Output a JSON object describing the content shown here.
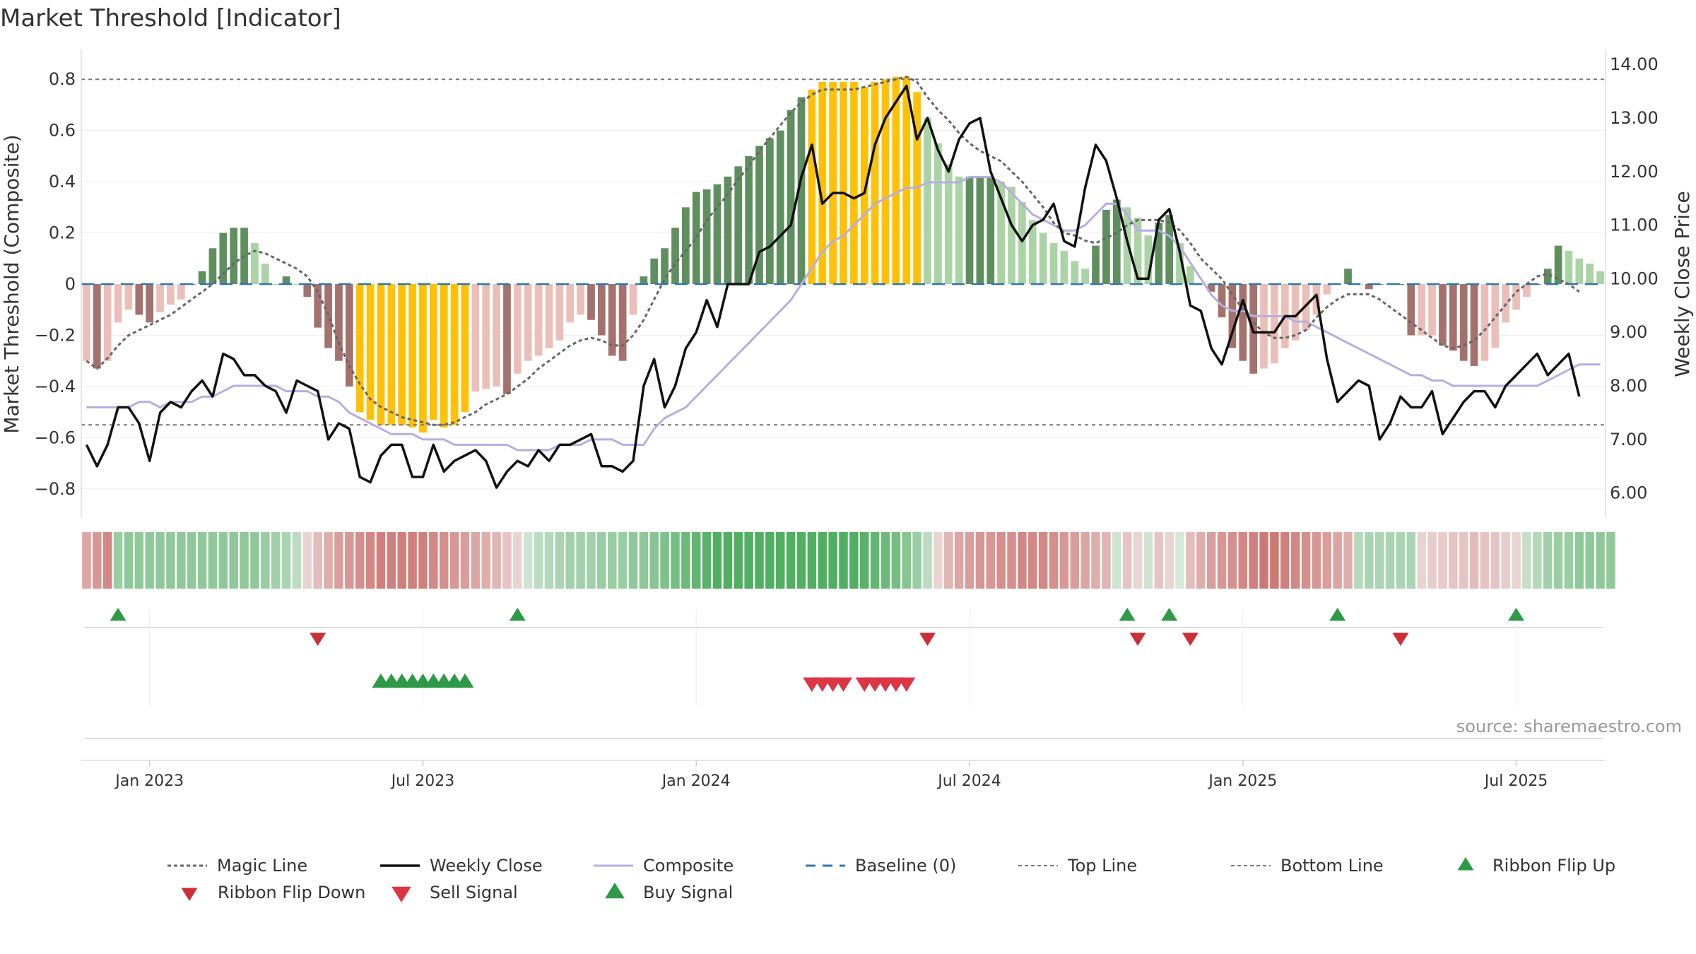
{
  "title": "Market Threshold [Indicator]",
  "source": "source: sharemaestro.com",
  "colors": {
    "bar_pos_strong": "#5f8f5f",
    "bar_pos_weak": "#aad4a5",
    "bar_neg_strong": "#a4716c",
    "bar_neg_weak": "#ebbfb9",
    "bar_extreme": "#ffc107",
    "weekly_close": "#111111",
    "composite": "#b7aee0",
    "magic_line": "#666666",
    "baseline": "#2f77a8",
    "threshold_line": "#777777",
    "up_marker": "#2e9a48",
    "down_marker": "#cc2f36",
    "sell_marker": "#dc3545",
    "buy_marker": "#2e9a48",
    "ribbon_green": "#3fa751",
    "ribbon_red": "#c55a55"
  },
  "chart_data": {
    "type": "bar",
    "y_left_label": "Market Threshold (Composite)",
    "y_right_label": "Weekly Close Price",
    "y_left_range": [
      -0.9,
      0.9
    ],
    "y_right_range": [
      5.6,
      14.2
    ],
    "y_left_ticks": [
      "0.8",
      "0.6",
      "0.4",
      "0.2",
      "0",
      "−0.2",
      "−0.4",
      "−0.6",
      "−0.8"
    ],
    "y_left_tick_values": [
      0.8,
      0.6,
      0.4,
      0.2,
      0,
      -0.2,
      -0.4,
      -0.6,
      -0.8
    ],
    "y_right_ticks": [
      "14.00",
      "13.00",
      "12.00",
      "11.00",
      "10.00",
      "9.00",
      "8.00",
      "7.00",
      "6.00"
    ],
    "y_right_tick_values": [
      14,
      13,
      12,
      11,
      10,
      9,
      8,
      7,
      6
    ],
    "x_ticks": [
      "Jan 2023",
      "Jul 2023",
      "Jan 2024",
      "Jul 2024",
      "Jan 2025",
      "Jul 2025"
    ],
    "x_tick_weeks": [
      6,
      32,
      58,
      84,
      110,
      136
    ],
    "top_line": 0.8,
    "bottom_line": -0.55,
    "baseline": 0,
    "composite_bars": [
      -0.3,
      -0.33,
      -0.3,
      -0.15,
      -0.1,
      -0.12,
      -0.15,
      -0.11,
      -0.08,
      -0.06,
      0,
      0.05,
      0.14,
      0.2,
      0.22,
      0.22,
      0.16,
      0.08,
      0,
      0.03,
      0,
      -0.05,
      -0.17,
      -0.25,
      -0.3,
      -0.4,
      -0.5,
      -0.53,
      -0.55,
      -0.55,
      -0.55,
      -0.56,
      -0.58,
      -0.53,
      -0.56,
      -0.55,
      -0.5,
      -0.42,
      -0.41,
      -0.4,
      -0.43,
      -0.35,
      -0.3,
      -0.28,
      -0.25,
      -0.22,
      -0.15,
      -0.12,
      -0.14,
      -0.2,
      -0.28,
      -0.3,
      -0.12,
      0.03,
      0.1,
      0.14,
      0.22,
      0.3,
      0.36,
      0.37,
      0.39,
      0.42,
      0.46,
      0.5,
      0.54,
      0.57,
      0.6,
      0.68,
      0.73,
      0.76,
      0.79,
      0.79,
      0.79,
      0.79,
      0.77,
      0.79,
      0.8,
      0.81,
      0.81,
      0.75,
      0.65,
      0.55,
      0.47,
      0.42,
      0.42,
      0.42,
      0.42,
      0.4,
      0.38,
      0.32,
      0.25,
      0.2,
      0.16,
      0.13,
      0.09,
      0.06,
      0.15,
      0.29,
      0.33,
      0.3,
      0.26,
      0.19,
      0.24,
      0.27,
      0.16,
      0.07,
      0,
      -0.03,
      -0.13,
      -0.25,
      -0.3,
      -0.35,
      -0.33,
      -0.31,
      -0.25,
      -0.22,
      -0.18,
      -0.12,
      -0.04,
      0,
      0.06,
      0,
      -0.02,
      0,
      0,
      0,
      -0.2,
      -0.2,
      -0.2,
      -0.24,
      -0.26,
      -0.3,
      -0.32,
      -0.3,
      -0.25,
      -0.15,
      -0.1,
      -0.05,
      0,
      0.06,
      0.15,
      0.13,
      0.1,
      0.08,
      0.05
    ],
    "magic_line": [
      -0.3,
      -0.33,
      -0.29,
      -0.24,
      -0.2,
      -0.18,
      -0.16,
      -0.14,
      -0.12,
      -0.09,
      -0.06,
      -0.03,
      0,
      0.04,
      0.08,
      0.11,
      0.13,
      0.12,
      0.1,
      0.08,
      0.06,
      0.03,
      -0.03,
      -0.12,
      -0.23,
      -0.32,
      -0.39,
      -0.45,
      -0.48,
      -0.5,
      -0.52,
      -0.53,
      -0.54,
      -0.55,
      -0.55,
      -0.54,
      -0.52,
      -0.5,
      -0.47,
      -0.45,
      -0.43,
      -0.4,
      -0.37,
      -0.33,
      -0.3,
      -0.27,
      -0.24,
      -0.22,
      -0.21,
      -0.22,
      -0.24,
      -0.24,
      -0.2,
      -0.14,
      -0.06,
      0.02,
      0.08,
      0.13,
      0.18,
      0.25,
      0.3,
      0.35,
      0.41,
      0.46,
      0.52,
      0.57,
      0.62,
      0.67,
      0.71,
      0.74,
      0.76,
      0.76,
      0.76,
      0.76,
      0.77,
      0.78,
      0.79,
      0.8,
      0.81,
      0.79,
      0.73,
      0.68,
      0.64,
      0.59,
      0.55,
      0.52,
      0.5,
      0.48,
      0.44,
      0.4,
      0.35,
      0.3,
      0.24,
      0.2,
      0.19,
      0.17,
      0.16,
      0.18,
      0.2,
      0.23,
      0.25,
      0.25,
      0.25,
      0.24,
      0.21,
      0.16,
      0.1,
      0.06,
      0.02,
      -0.04,
      -0.1,
      -0.15,
      -0.19,
      -0.21,
      -0.21,
      -0.2,
      -0.18,
      -0.13,
      -0.09,
      -0.06,
      -0.04,
      -0.04,
      -0.04,
      -0.06,
      -0.09,
      -0.12,
      -0.15,
      -0.18,
      -0.21,
      -0.24,
      -0.25,
      -0.24,
      -0.22,
      -0.18,
      -0.13,
      -0.08,
      -0.03,
      0,
      0.03,
      0.04,
      0.02,
      0,
      -0.03
    ],
    "weekly_close": [
      6.9,
      6.5,
      6.9,
      7.6,
      7.6,
      7.3,
      6.6,
      7.5,
      7.7,
      7.6,
      7.9,
      8.1,
      7.8,
      8.6,
      8.5,
      8.2,
      8.2,
      8.0,
      7.9,
      7.5,
      8.1,
      8.0,
      7.9,
      7.0,
      7.3,
      7.2,
      6.3,
      6.2,
      6.7,
      6.9,
      6.9,
      6.3,
      6.3,
      6.9,
      6.4,
      6.6,
      6.7,
      6.8,
      6.6,
      6.1,
      6.4,
      6.6,
      6.5,
      6.8,
      6.6,
      6.9,
      6.9,
      7.0,
      7.1,
      6.5,
      6.5,
      6.4,
      6.6,
      8.0,
      8.5,
      7.6,
      8.0,
      8.7,
      9.0,
      9.6,
      9.1,
      9.9,
      9.9,
      9.9,
      10.5,
      10.6,
      10.8,
      11.0,
      11.9,
      12.5,
      11.4,
      11.6,
      11.6,
      11.5,
      11.6,
      12.5,
      13.0,
      13.3,
      13.6,
      12.6,
      13.0,
      12.4,
      12.0,
      12.6,
      12.9,
      13.0,
      12.0,
      11.5,
      11.0,
      10.7,
      11.0,
      11.1,
      11.4,
      10.7,
      10.6,
      11.7,
      12.5,
      12.2,
      11.5,
      10.7,
      10.0,
      10.0,
      11.1,
      11.3,
      10.5,
      9.5,
      9.4,
      8.7,
      8.4,
      9.0,
      9.6,
      9.0,
      9.0,
      9.0,
      9.3,
      9.3,
      9.5,
      9.7,
      8.5,
      7.7,
      7.9,
      8.1,
      8.0,
      7.0,
      7.3,
      7.8,
      7.6,
      7.6,
      7.9,
      7.1,
      7.4,
      7.7,
      7.9,
      7.9,
      7.6,
      8.0,
      8.2,
      8.4,
      8.6,
      8.2,
      8.4,
      8.6,
      7.8
    ],
    "composite_line": [
      7.6,
      7.6,
      7.6,
      7.6,
      7.6,
      7.7,
      7.7,
      7.6,
      7.7,
      7.7,
      7.7,
      7.8,
      7.8,
      7.9,
      8.0,
      8.0,
      8.0,
      8.0,
      8.0,
      7.9,
      7.9,
      7.9,
      7.8,
      7.8,
      7.7,
      7.5,
      7.4,
      7.3,
      7.2,
      7.1,
      7.1,
      7.1,
      7.0,
      7.0,
      7.0,
      6.9,
      6.9,
      6.9,
      6.9,
      6.9,
      6.9,
      6.8,
      6.8,
      6.8,
      6.8,
      6.9,
      6.9,
      6.9,
      7.0,
      7.0,
      7.0,
      6.9,
      6.9,
      6.9,
      7.2,
      7.4,
      7.5,
      7.6,
      7.8,
      8.0,
      8.2,
      8.4,
      8.6,
      8.8,
      9.0,
      9.2,
      9.4,
      9.6,
      9.9,
      10.2,
      10.5,
      10.7,
      10.8,
      11.0,
      11.2,
      11.4,
      11.5,
      11.6,
      11.7,
      11.7,
      11.8,
      11.8,
      11.8,
      11.8,
      11.9,
      11.9,
      11.9,
      11.8,
      11.6,
      11.4,
      11.2,
      11.1,
      11.0,
      10.9,
      10.9,
      11.0,
      11.2,
      11.4,
      11.4,
      11.2,
      10.9,
      10.9,
      10.9,
      10.8,
      10.6,
      10.3,
      10.0,
      9.7,
      9.5,
      9.4,
      9.4,
      9.3,
      9.3,
      9.3,
      9.3,
      9.2,
      9.2,
      9.1,
      9.0,
      8.9,
      8.8,
      8.7,
      8.6,
      8.5,
      8.4,
      8.3,
      8.2,
      8.2,
      8.1,
      8.1,
      8.0,
      8.0,
      8.0,
      8.0,
      8.0,
      8.0,
      8.0,
      8.0,
      8.0,
      8.1,
      8.2,
      8.3,
      8.4,
      8.4,
      8.4
    ],
    "ribbon_values": [
      -0.5,
      -0.6,
      -0.7,
      0.5,
      0.55,
      0.55,
      0.55,
      0.55,
      0.55,
      0.55,
      0.55,
      0.55,
      0.55,
      0.55,
      0.55,
      0.55,
      0.55,
      0.5,
      0.45,
      0.4,
      0.3,
      -0.2,
      -0.35,
      -0.45,
      -0.55,
      -0.6,
      -0.65,
      -0.7,
      -0.75,
      -0.75,
      -0.75,
      -0.75,
      -0.75,
      -0.7,
      -0.65,
      -0.6,
      -0.55,
      -0.5,
      -0.45,
      -0.4,
      -0.3,
      -0.2,
      0.2,
      0.3,
      0.35,
      0.4,
      0.45,
      0.45,
      0.45,
      0.5,
      0.5,
      0.5,
      0.55,
      0.55,
      0.6,
      0.65,
      0.7,
      0.75,
      0.8,
      0.85,
      0.9,
      0.9,
      0.9,
      0.9,
      0.9,
      0.9,
      0.9,
      0.9,
      0.9,
      0.9,
      0.9,
      0.9,
      0.9,
      0.9,
      0.85,
      0.8,
      0.75,
      0.7,
      0.6,
      0.5,
      0.3,
      -0.2,
      -0.4,
      -0.5,
      -0.55,
      -0.6,
      -0.6,
      -0.65,
      -0.65,
      -0.7,
      -0.7,
      -0.7,
      -0.65,
      -0.6,
      -0.55,
      -0.5,
      -0.45,
      -0.4,
      0.2,
      -0.3,
      -0.2,
      0.2,
      -0.3,
      -0.2,
      0.15,
      -0.35,
      -0.45,
      -0.55,
      -0.6,
      -0.65,
      -0.7,
      -0.75,
      -0.8,
      -0.8,
      -0.75,
      -0.7,
      -0.65,
      -0.6,
      -0.55,
      -0.5,
      -0.45,
      0.35,
      0.4,
      0.4,
      0.4,
      0.4,
      0.4,
      -0.2,
      -0.25,
      -0.25,
      -0.3,
      -0.3,
      -0.35,
      -0.3,
      -0.3,
      -0.25,
      -0.2,
      0.25,
      0.35,
      0.45,
      0.5,
      0.5,
      0.55,
      0.55,
      0.55,
      0.55
    ],
    "ribbon_flip_up": [
      3,
      41,
      99,
      103,
      119,
      136
    ],
    "ribbon_flip_down": [
      22,
      80,
      100,
      105,
      125
    ],
    "buy_signal": [
      28,
      29,
      30,
      31,
      32,
      33,
      34,
      35,
      36
    ],
    "sell_signal": [
      69,
      70,
      71,
      72,
      74,
      75,
      76,
      77,
      78
    ],
    "legend": [
      {
        "key": "magic",
        "label": "Magic Line"
      },
      {
        "key": "close",
        "label": "Weekly Close"
      },
      {
        "key": "composite",
        "label": "Composite"
      },
      {
        "key": "baseline",
        "label": "Baseline (0)"
      },
      {
        "key": "top",
        "label": "Top Line"
      },
      {
        "key": "bottom",
        "label": "Bottom Line"
      },
      {
        "key": "flipup",
        "label": "Ribbon Flip Up"
      },
      {
        "key": "flipdown",
        "label": "Ribbon Flip Down"
      },
      {
        "key": "sell",
        "label": "Sell Signal"
      },
      {
        "key": "buy",
        "label": "Buy Signal"
      }
    ]
  }
}
